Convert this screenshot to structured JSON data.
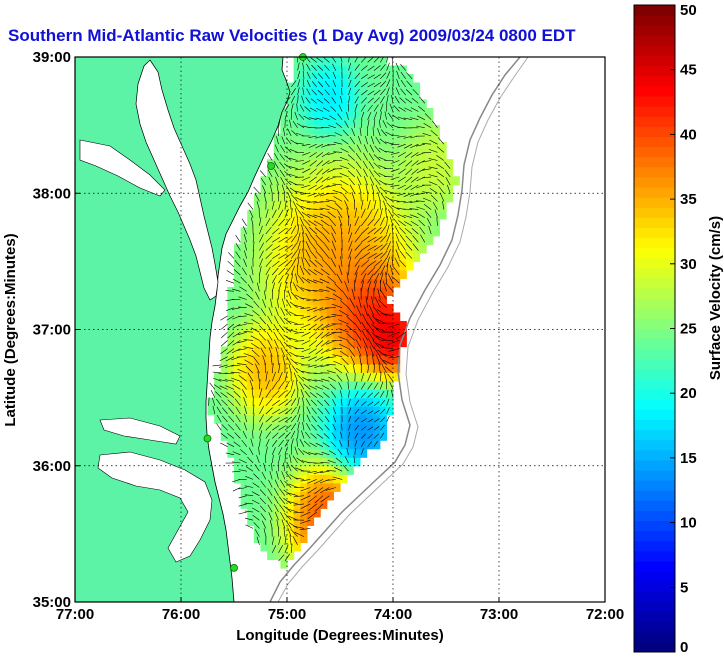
{
  "chart_data": {
    "type": "heatmap",
    "title": "Southern Mid-Atlantic Raw Velocities (1 Day Avg) 2009/03/24 0800 EDT",
    "xlabel": "Longitude (Degrees:Minutes)",
    "ylabel": "Latitude (Degrees:Minutes)",
    "colorbar_label": "Surface Velocity (cm/s)",
    "xlim": [
      -77,
      -72
    ],
    "ylim": [
      35,
      39
    ],
    "x_ticks": [
      {
        "value": -77,
        "label": "77:00"
      },
      {
        "value": -76,
        "label": "76:00"
      },
      {
        "value": -75,
        "label": "75:00"
      },
      {
        "value": -74,
        "label": "74:00"
      },
      {
        "value": -73,
        "label": "73:00"
      },
      {
        "value": -72,
        "label": "72:00"
      }
    ],
    "y_ticks": [
      {
        "value": 35,
        "label": "35:00"
      },
      {
        "value": 36,
        "label": "36:00"
      },
      {
        "value": 37,
        "label": "37:00"
      },
      {
        "value": 38,
        "label": "38:00"
      },
      {
        "value": 39,
        "label": "39:00"
      }
    ],
    "colorbar": {
      "min": 0,
      "max": 50,
      "ticks": [
        {
          "value": 0,
          "label": "0"
        },
        {
          "value": 5,
          "label": "5"
        },
        {
          "value": 10,
          "label": "10"
        },
        {
          "value": 15,
          "label": "15"
        },
        {
          "value": 20,
          "label": "20"
        },
        {
          "value": 25,
          "label": "25"
        },
        {
          "value": 30,
          "label": "30"
        },
        {
          "value": 35,
          "label": "35"
        },
        {
          "value": 40,
          "label": "40"
        },
        {
          "value": 45,
          "label": "45"
        },
        {
          "value": 50,
          "label": "50"
        }
      ],
      "colormap": "jet"
    },
    "grid": true,
    "land_color": "#5cf3a6",
    "velocity_field": {
      "hotspots": [
        {
          "lon": -74.5,
          "lat": 37.5,
          "speed": 40,
          "radius": 0.5
        },
        {
          "lon": -74.2,
          "lat": 37.1,
          "speed": 48,
          "radius": 0.3
        },
        {
          "lon": -74.0,
          "lat": 36.95,
          "speed": 50,
          "radius": 0.2
        },
        {
          "lon": -74.3,
          "lat": 36.25,
          "speed": 10,
          "radius": 0.25
        },
        {
          "lon": -74.6,
          "lat": 35.6,
          "speed": 45,
          "radius": 0.3
        },
        {
          "lon": -73.6,
          "lat": 38.2,
          "speed": 30,
          "radius": 0.25
        },
        {
          "lon": -74.6,
          "lat": 38.7,
          "speed": 16,
          "radius": 0.2
        },
        {
          "lon": -75.2,
          "lat": 36.7,
          "speed": 38,
          "radius": 0.25
        }
      ]
    },
    "stations": [
      {
        "lon": -74.85,
        "lat": 39.0
      },
      {
        "lon": -75.15,
        "lat": 38.2
      },
      {
        "lon": -75.75,
        "lat": 36.2
      },
      {
        "lon": -75.5,
        "lat": 35.25
      }
    ]
  }
}
